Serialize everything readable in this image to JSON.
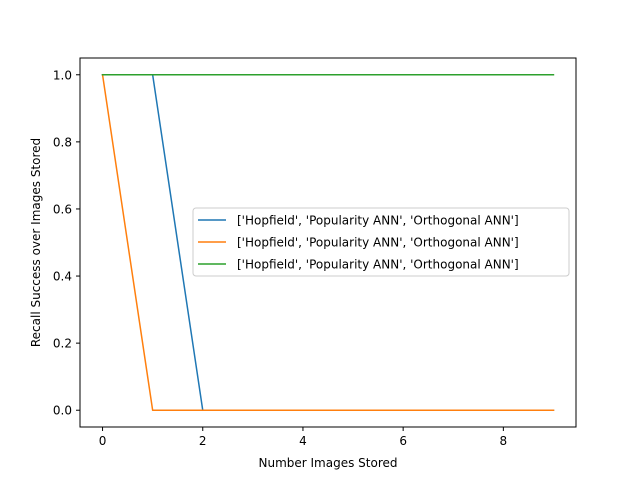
{
  "chart_data": {
    "type": "line",
    "title": "",
    "xlabel": "Number Images Stored",
    "ylabel": "Recall Success over Images Stored",
    "xlim": [
      -0.45,
      9.45
    ],
    "ylim": [
      -0.05,
      1.05
    ],
    "xticks": [
      0,
      2,
      4,
      6,
      8
    ],
    "xtick_labels": [
      "0",
      "2",
      "4",
      "6",
      "8"
    ],
    "yticks": [
      0.0,
      0.2,
      0.4,
      0.6,
      0.8,
      1.0
    ],
    "ytick_labels": [
      "0.0",
      "0.2",
      "0.4",
      "0.6",
      "0.8",
      "1.0"
    ],
    "grid": false,
    "legend_position": "center-right",
    "x": [
      0,
      1,
      2,
      3,
      4,
      5,
      6,
      7,
      8,
      9
    ],
    "series": [
      {
        "name": "['Hopfield', 'Popularity ANN', 'Orthogonal ANN']",
        "color": "#1f77b4",
        "values": [
          1,
          1,
          0,
          0,
          0,
          0,
          0,
          0,
          0,
          0
        ]
      },
      {
        "name": "['Hopfield', 'Popularity ANN', 'Orthogonal ANN']",
        "color": "#ff7f0e",
        "values": [
          1,
          0,
          0,
          0,
          0,
          0,
          0,
          0,
          0,
          0
        ]
      },
      {
        "name": "['Hopfield', 'Popularity ANN', 'Orthogonal ANN']",
        "color": "#2ca02c",
        "values": [
          1,
          1,
          1,
          1,
          1,
          1,
          1,
          1,
          1,
          1
        ]
      }
    ]
  }
}
